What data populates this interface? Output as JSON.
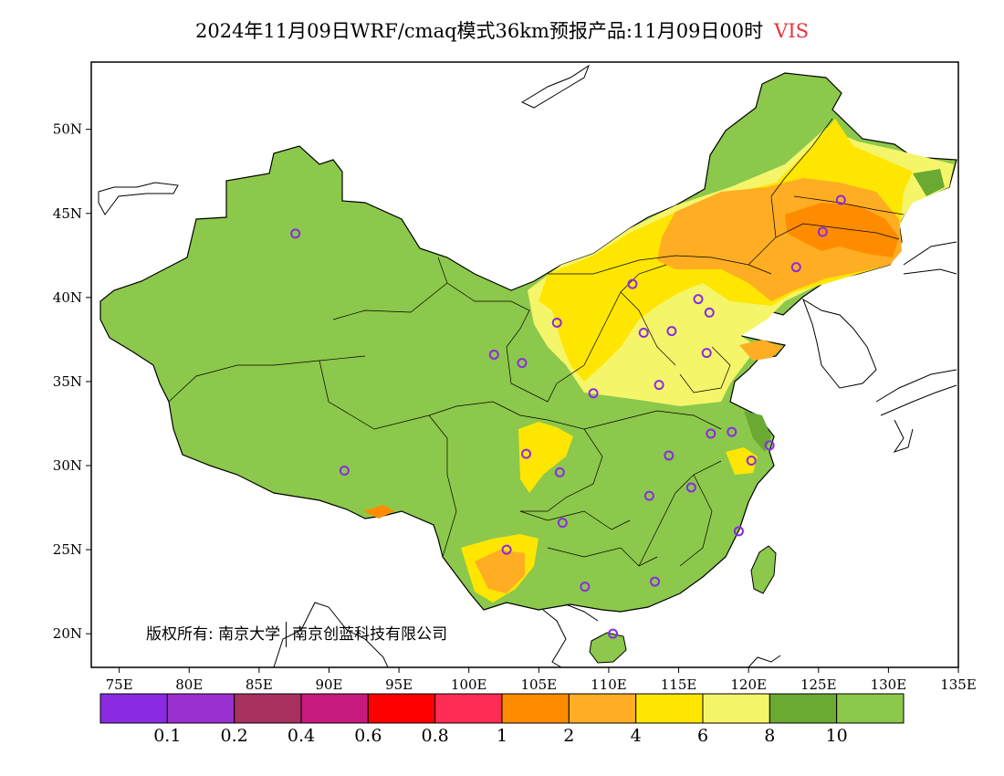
{
  "title": {
    "text": "2024年11月09日WRF/cmaq模式36km预报产品:11月09日00时",
    "variable": "VIS"
  },
  "map": {
    "lon_range": [
      73,
      135
    ],
    "lat_range": [
      18,
      54
    ],
    "x_ticks": [
      "75E",
      "80E",
      "85E",
      "90E",
      "95E",
      "100E",
      "105E",
      "110E",
      "115E",
      "120E",
      "125E",
      "130E",
      "135E"
    ],
    "y_ticks": [
      "20N",
      "25N",
      "30N",
      "35N",
      "40N",
      "45N",
      "50N"
    ],
    "land_color": "#8cc84b",
    "station_color": "#8a2be2",
    "stations": [
      {
        "lon": 87.6,
        "lat": 43.8
      },
      {
        "lon": 91.1,
        "lat": 29.7
      },
      {
        "lon": 101.8,
        "lat": 36.6
      },
      {
        "lon": 103.8,
        "lat": 36.1
      },
      {
        "lon": 106.3,
        "lat": 38.5
      },
      {
        "lon": 111.7,
        "lat": 40.8
      },
      {
        "lon": 112.5,
        "lat": 37.9
      },
      {
        "lon": 114.5,
        "lat": 38.0
      },
      {
        "lon": 116.4,
        "lat": 39.9
      },
      {
        "lon": 117.2,
        "lat": 39.1
      },
      {
        "lon": 117.0,
        "lat": 36.7
      },
      {
        "lon": 113.6,
        "lat": 34.8
      },
      {
        "lon": 108.9,
        "lat": 34.3
      },
      {
        "lon": 104.1,
        "lat": 30.7
      },
      {
        "lon": 106.5,
        "lat": 29.6
      },
      {
        "lon": 106.7,
        "lat": 26.6
      },
      {
        "lon": 102.7,
        "lat": 25.0
      },
      {
        "lon": 108.3,
        "lat": 22.8
      },
      {
        "lon": 113.3,
        "lat": 23.1
      },
      {
        "lon": 110.3,
        "lat": 20.0
      },
      {
        "lon": 112.9,
        "lat": 28.2
      },
      {
        "lon": 114.3,
        "lat": 30.6
      },
      {
        "lon": 115.9,
        "lat": 28.7
      },
      {
        "lon": 117.3,
        "lat": 31.9
      },
      {
        "lon": 118.8,
        "lat": 32.0
      },
      {
        "lon": 120.2,
        "lat": 30.3
      },
      {
        "lon": 121.5,
        "lat": 31.2
      },
      {
        "lon": 119.3,
        "lat": 26.1
      },
      {
        "lon": 123.4,
        "lat": 41.8
      },
      {
        "lon": 125.3,
        "lat": 43.9
      },
      {
        "lon": 126.6,
        "lat": 45.8
      }
    ]
  },
  "colorbar": {
    "colors": [
      "#8a2be2",
      "#9b30d0",
      "#a8305f",
      "#c8197f",
      "#ff0000",
      "#ff2d55",
      "#ff8c00",
      "#ffad22",
      "#ffe600",
      "#f5f56a",
      "#6aaa32",
      "#8cc84b"
    ],
    "labels": [
      "0.1",
      "0.2",
      "0.4",
      "0.6",
      "0.8",
      "1",
      "2",
      "4",
      "6",
      "8",
      "10"
    ]
  },
  "copyright": {
    "prefix": "版权所有:",
    "org1": "南京大学",
    "org2": "南京创蓝科技有限公司"
  }
}
